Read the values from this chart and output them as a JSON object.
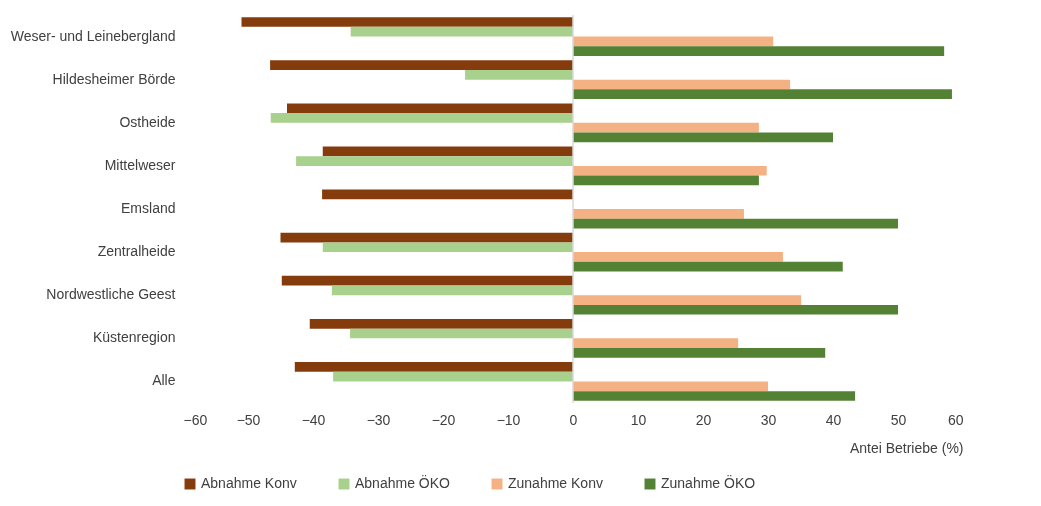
{
  "chart_data": {
    "type": "bar",
    "orientation": "horizontal",
    "xlabel": "Antei Betriebe (%)",
    "categories": [
      "Weser- und Leinebergland",
      "Hildesheimer Börde",
      "Ostheide",
      "Mittelweser",
      "Emsland",
      "Zentralheide",
      "Nordwestliche Geest",
      "Küstenregion",
      "Alle"
    ],
    "series": [
      {
        "name": "Abnahme Konv",
        "color": "#843c0c",
        "values": [
          -51,
          -46.6,
          -44,
          -38.5,
          -38.6,
          -45,
          -44.8,
          -40.5,
          -42.8
        ]
      },
      {
        "name": "Abnahme ÖKO",
        "color": "#a9d18e",
        "values": [
          -34.2,
          -16.6,
          -46.5,
          -42.6,
          null,
          -38.5,
          -37.1,
          -34.3,
          -36.9
        ]
      },
      {
        "name": "Zunahme Konv",
        "color": "#f4b183",
        "values": [
          30.8,
          33.4,
          28.6,
          29.8,
          26.3,
          32.3,
          35.1,
          25.4,
          30
        ]
      },
      {
        "name": "Zunahme ÖKO",
        "color": "#548235",
        "values": [
          57.1,
          58.3,
          40,
          28.6,
          50,
          41.5,
          50,
          38.8,
          43.4
        ]
      }
    ],
    "xlim": [
      -60,
      60
    ],
    "xticks": [
      -60,
      -50,
      -40,
      -30,
      -20,
      -10,
      0,
      10,
      20,
      30,
      40,
      50,
      60
    ],
    "ref_lines": [
      {
        "axis": "x",
        "value": 0,
        "color": "#d9d9d9"
      }
    ],
    "grid": false,
    "legend": "bottom"
  }
}
